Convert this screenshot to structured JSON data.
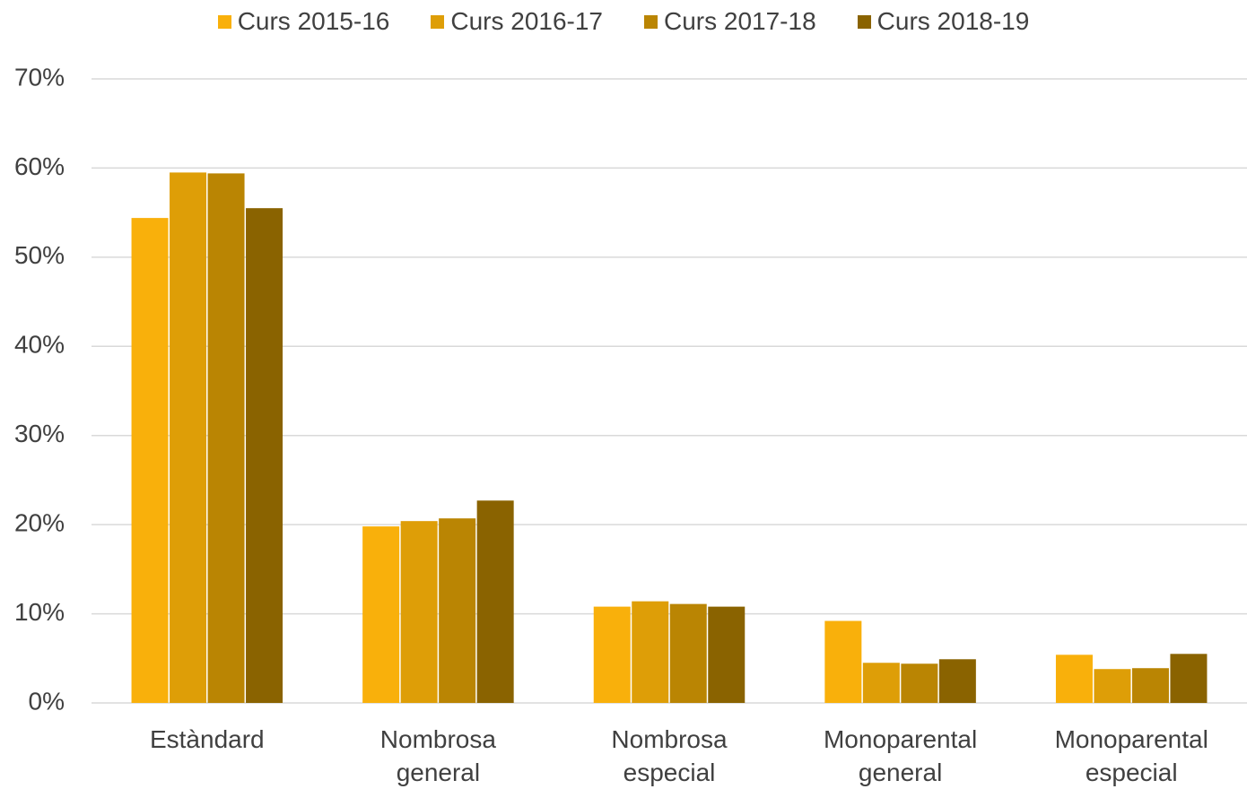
{
  "chart_data": {
    "type": "bar",
    "categories": [
      "Estàndard",
      "Nombrosa general",
      "Nombrosa especial",
      "Monoparental general",
      "Monoparental especial"
    ],
    "series": [
      {
        "name": "Curs 2015-16",
        "color": "#F9B00B",
        "values": [
          54.4,
          19.8,
          10.8,
          9.2,
          5.4
        ]
      },
      {
        "name": "Curs 2016-17",
        "color": "#DE9E07",
        "values": [
          59.5,
          20.4,
          11.4,
          4.5,
          3.8
        ]
      },
      {
        "name": "Curs 2017-18",
        "color": "#BA8503",
        "values": [
          59.4,
          20.7,
          11.1,
          4.4,
          3.9
        ]
      },
      {
        "name": "Curs 2018-19",
        "color": "#8A6300",
        "values": [
          55.5,
          22.7,
          10.8,
          4.9,
          5.5
        ]
      }
    ],
    "ylim": [
      0,
      70
    ],
    "yticks": [
      {
        "value": 0,
        "label": "0%"
      },
      {
        "value": 10,
        "label": "10%"
      },
      {
        "value": 20,
        "label": "20%"
      },
      {
        "value": 30,
        "label": "30%"
      },
      {
        "value": 40,
        "label": "40%"
      },
      {
        "value": 50,
        "label": "50%"
      },
      {
        "value": 60,
        "label": "60%"
      },
      {
        "value": 70,
        "label": "70%"
      }
    ],
    "grid": true,
    "legend": "top"
  }
}
